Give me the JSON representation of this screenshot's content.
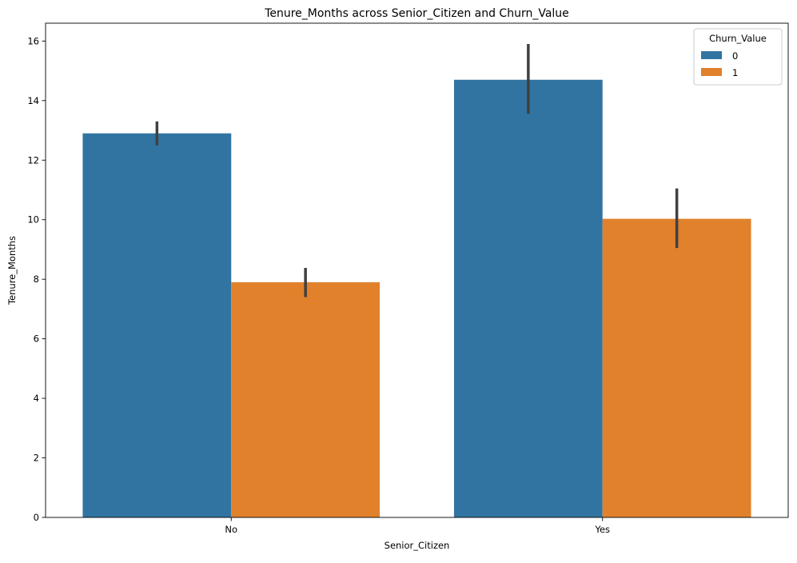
{
  "chart_data": {
    "type": "bar",
    "title": "Tenure_Months across Senior_Citizen and Churn_Value",
    "xlabel": "Senior_Citizen",
    "ylabel": "Tenure_Months",
    "categories": [
      "No",
      "Yes"
    ],
    "ylim": [
      0,
      16.6
    ],
    "yticks": [
      0,
      2,
      4,
      6,
      8,
      10,
      12,
      14,
      16
    ],
    "grid": false,
    "legend": {
      "title": "Churn_Value",
      "placement": "top-right"
    },
    "series": [
      {
        "name": "0",
        "color": "#3274a1",
        "values": [
          12.9,
          14.7
        ],
        "error_low": [
          12.5,
          13.55
        ],
        "error_high": [
          13.3,
          15.9
        ]
      },
      {
        "name": "1",
        "color": "#e1812c",
        "values": [
          7.9,
          10.03
        ],
        "error_low": [
          7.4,
          9.05
        ],
        "error_high": [
          8.38,
          11.05
        ]
      }
    ],
    "error_bar_color": "#404040"
  }
}
